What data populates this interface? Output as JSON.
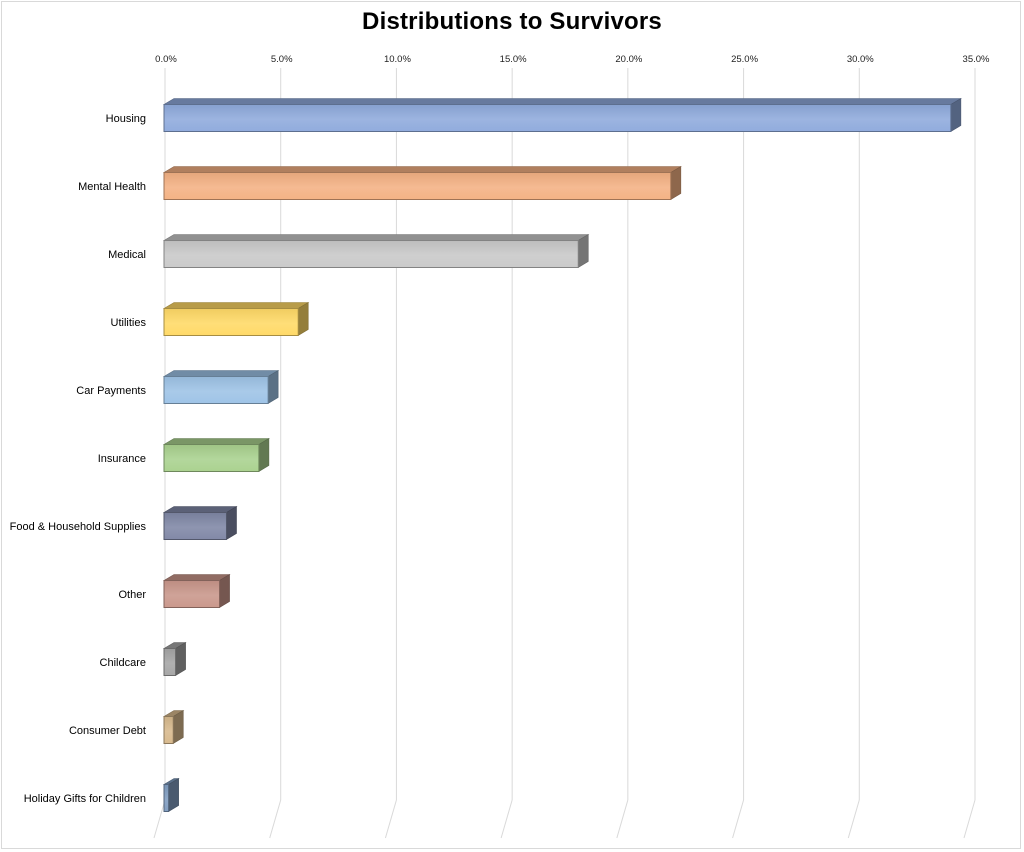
{
  "chart_data": {
    "type": "bar",
    "orientation": "horizontal",
    "style": "3d",
    "title": "Distributions to Survivors",
    "xlabel": "",
    "ylabel": "",
    "xlim": [
      0,
      35
    ],
    "ticks": [
      0,
      5,
      10,
      15,
      20,
      25,
      30,
      35
    ],
    "tick_labels": [
      "0.0%",
      "5.0%",
      "10.0%",
      "15.0%",
      "20.0%",
      "25.0%",
      "30.0%",
      "35.0%"
    ],
    "tick_position": "top",
    "grid": true,
    "legend": "none",
    "categories": [
      "Housing",
      "Mental Health",
      "Medical",
      "Utilities",
      "Car Payments",
      "Insurance",
      "Food & Household Supplies",
      "Other",
      "Childcare",
      "Consumer Debt",
      "Holiday Gifts for Children"
    ],
    "values": [
      34.0,
      21.9,
      17.9,
      5.8,
      4.5,
      4.1,
      2.7,
      2.4,
      0.5,
      0.4,
      0.2
    ],
    "colors": [
      "#8faadc",
      "#f4b183",
      "#c9c9c9",
      "#ffd966",
      "#9dc3e6",
      "#a9d18e",
      "#7f87a5",
      "#c9968a",
      "#a5a5a5",
      "#d7b98c",
      "#7f9cc0"
    ]
  }
}
